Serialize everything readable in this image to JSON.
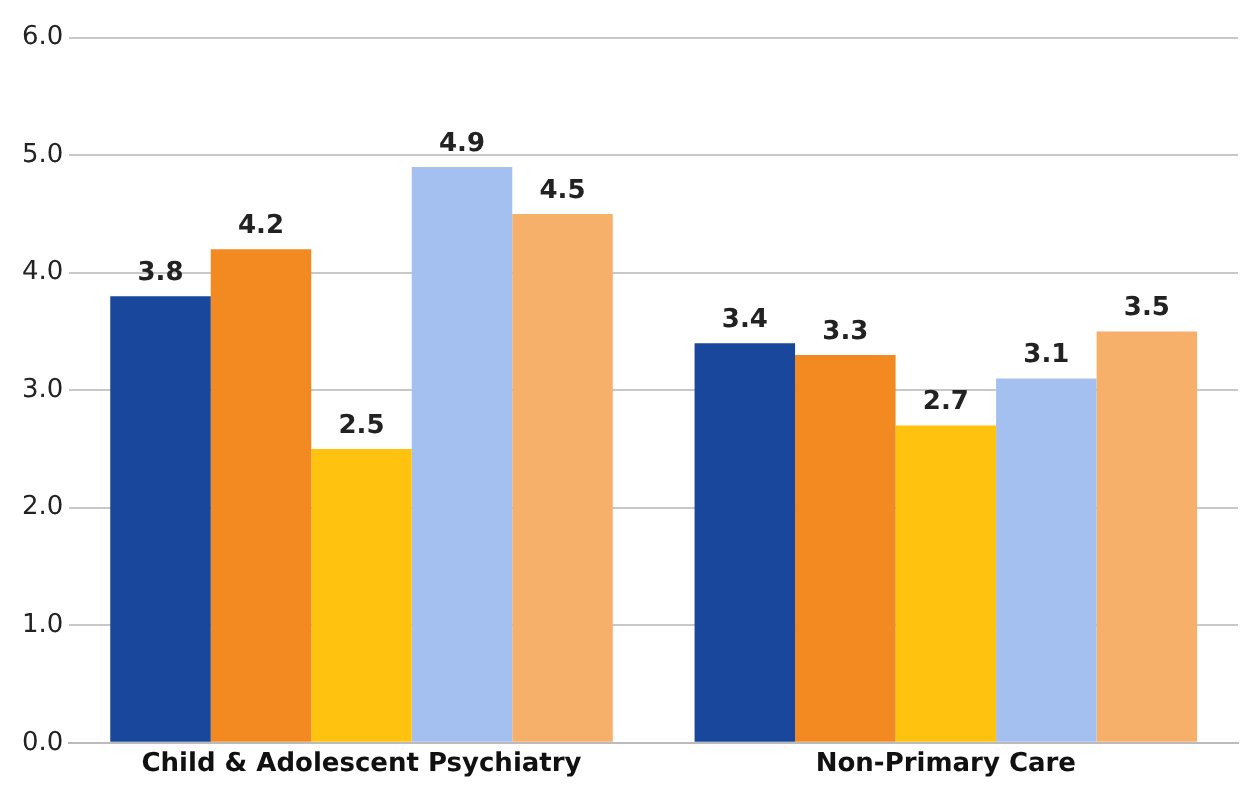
{
  "chart_data": {
    "type": "bar",
    "categories": [
      "Child & Adolescent Psychiatry",
      "Non-Primary Care"
    ],
    "series": [
      {
        "color": "#18479b",
        "values": [
          3.8,
          3.4
        ]
      },
      {
        "color": "#f28a21",
        "values": [
          4.2,
          3.3
        ]
      },
      {
        "color": "#fec20f",
        "values": [
          2.5,
          2.7
        ]
      },
      {
        "color": "#a4c0f0",
        "values": [
          4.9,
          3.1
        ]
      },
      {
        "color": "#f7b06a",
        "values": [
          4.5,
          3.5
        ]
      }
    ],
    "ylim": [
      0,
      6
    ],
    "yticks": [
      {
        "value": 0,
        "label": "0.0"
      },
      {
        "value": 1,
        "label": "1.0"
      },
      {
        "value": 2,
        "label": "2.0"
      },
      {
        "value": 3,
        "label": "3.0"
      },
      {
        "value": 4,
        "label": "4.0"
      },
      {
        "value": 5,
        "label": "5.0"
      },
      {
        "value": 6,
        "label": "6.0"
      }
    ],
    "grid": "y",
    "legend": false,
    "data_labels": true
  }
}
